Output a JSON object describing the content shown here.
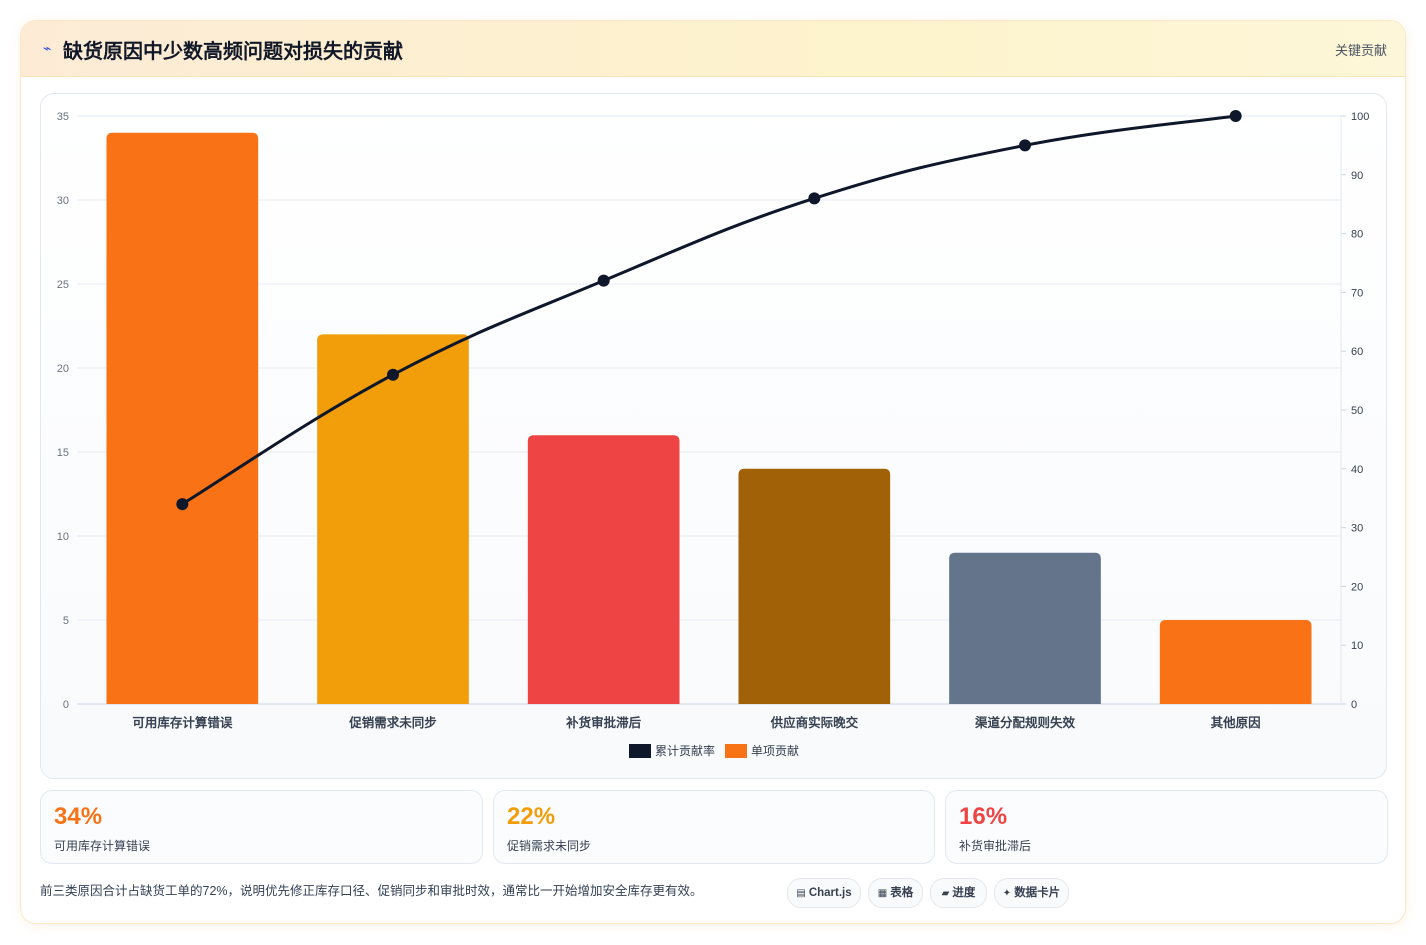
{
  "header": {
    "icon": "bolt-icon",
    "title": "缺货原因中少数高频问题对损失的贡献",
    "tag": "关键贡献"
  },
  "chart_data": {
    "type": "bar",
    "categories": [
      "可用库存计算错误",
      "促销需求未同步",
      "补货审批滞后",
      "供应商实际晚交",
      "渠道分配规则失效",
      "其他原因"
    ],
    "series": [
      {
        "name": "单项贡献",
        "kind": "bar",
        "axis": "left",
        "values": [
          34,
          22,
          16,
          14,
          9,
          5
        ],
        "colors": [
          "#f97316",
          "#f29e0b",
          "#ef4444",
          "#a16207",
          "#64748b",
          "#f97316"
        ]
      },
      {
        "name": "累计贡献率",
        "kind": "line",
        "axis": "right",
        "values": [
          34,
          56,
          72,
          86,
          95,
          100
        ],
        "color": "#0f172a"
      }
    ],
    "ylim_left": [
      0,
      35
    ],
    "yticks_left": [
      0,
      5,
      10,
      15,
      20,
      25,
      30,
      35
    ],
    "ylim_right": [
      0,
      100
    ],
    "yticks_right": [
      0,
      10,
      20,
      30,
      40,
      50,
      60,
      70,
      80,
      90,
      100
    ],
    "legend": [
      {
        "label": "累计贡献率",
        "color": "#0f172a"
      },
      {
        "label": "单项贡献",
        "color": "#f97316"
      }
    ],
    "legend_position": "bottom",
    "grid": true
  },
  "stats": [
    {
      "value": "34%",
      "label": "可用库存计算错误",
      "color": "#f97316"
    },
    {
      "value": "22%",
      "label": "促销需求未同步",
      "color": "#f29e0b"
    },
    {
      "value": "16%",
      "label": "补货审批滞后",
      "color": "#ef4444"
    }
  ],
  "note": "前三类原因合计占缺货工单的72%，说明优先修正库存口径、促销同步和审批时效，通常比一开始增加安全库存更有效。",
  "pills": [
    {
      "icon": "▤",
      "label": "Chart.js"
    },
    {
      "icon": "▦",
      "label": "表格"
    },
    {
      "icon": "▰",
      "label": "进度"
    },
    {
      "icon": "✦",
      "label": "数据卡片"
    }
  ]
}
